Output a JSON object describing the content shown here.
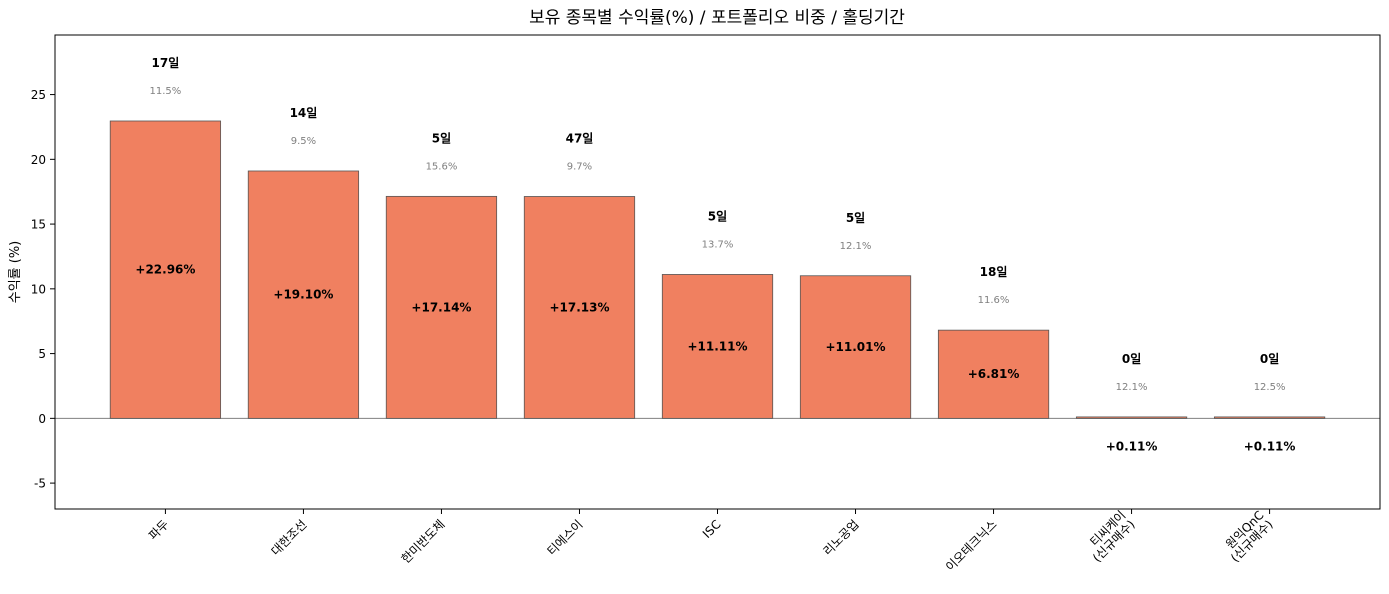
{
  "chart_data": {
    "type": "bar",
    "title": "보유 종목별 수익률(%) / 포트폴리오 비중 / 홀딩기간",
    "xlabel": "",
    "ylabel": "수익률 (%)",
    "ylim": [
      -7,
      29.6
    ],
    "yticks": [
      -5,
      0,
      5,
      10,
      15,
      20,
      25
    ],
    "grid": false,
    "bar_color": "#f08060",
    "categories": [
      "파두",
      "대한조선",
      "한미반도체",
      "티에스이",
      "ISC",
      "리노공업",
      "이오테크닉스",
      "티씨케이\n(신규매수)",
      "원익QnC\n(신규매수)"
    ],
    "values": [
      22.96,
      19.1,
      17.14,
      17.13,
      11.11,
      11.01,
      6.81,
      0.11,
      0.11
    ],
    "value_labels": [
      "+22.96%",
      "+19.10%",
      "+17.14%",
      "+17.13%",
      "+11.11%",
      "+11.01%",
      "+6.81%",
      "+0.11%",
      "+0.11%"
    ],
    "weights": [
      "11.5%",
      "9.5%",
      "15.6%",
      "9.7%",
      "13.7%",
      "12.1%",
      "11.6%",
      "12.1%",
      "12.5%"
    ],
    "holding_days": [
      "17일",
      "14일",
      "5일",
      "47일",
      "5일",
      "5일",
      "18일",
      "0일",
      "0일"
    ]
  }
}
